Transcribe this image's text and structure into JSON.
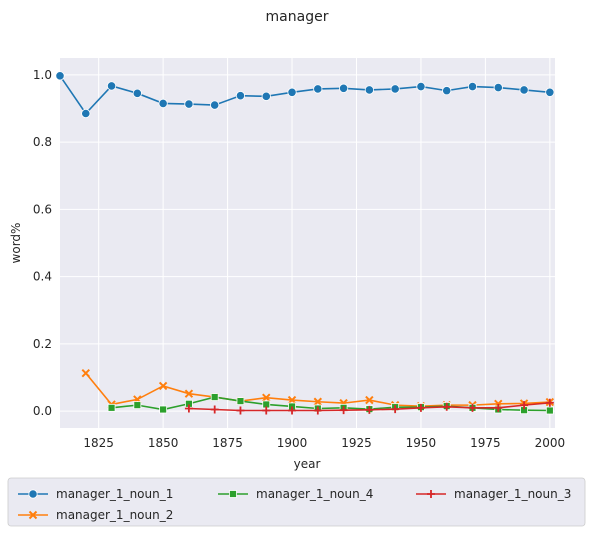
{
  "chart_data": {
    "type": "line",
    "title": "manager",
    "xlabel": "year",
    "ylabel": "word%",
    "xlim": [
      1810,
      2002
    ],
    "ylim": [
      -0.05,
      1.05
    ],
    "x_ticks": [
      1825,
      1850,
      1875,
      1900,
      1925,
      1950,
      1975,
      2000
    ],
    "y_ticks": [
      0.0,
      0.2,
      0.4,
      0.6,
      0.8,
      1.0
    ],
    "x_tick_labels": [
      "1825",
      "1850",
      "1875",
      "1900",
      "1925",
      "1950",
      "1975",
      "2000"
    ],
    "y_tick_labels": [
      "0.0",
      "0.2",
      "0.4",
      "0.6",
      "0.8",
      "1.0"
    ],
    "grid": true,
    "legend_position": "bottom",
    "series": [
      {
        "name": "manager_1_noun_1",
        "color": "#1f77b4",
        "marker": "circle",
        "x": [
          1810,
          1820,
          1830,
          1840,
          1850,
          1860,
          1870,
          1880,
          1890,
          1900,
          1910,
          1920,
          1930,
          1940,
          1950,
          1960,
          1970,
          1980,
          1990,
          2000
        ],
        "y": [
          0.997,
          0.885,
          0.967,
          0.945,
          0.915,
          0.913,
          0.91,
          0.938,
          0.936,
          0.948,
          0.958,
          0.96,
          0.955,
          0.958,
          0.965,
          0.953,
          0.965,
          0.962,
          0.955,
          0.948
        ]
      },
      {
        "name": "manager_1_noun_2",
        "color": "#ff7f0e",
        "marker": "x",
        "x": [
          1820,
          1830,
          1840,
          1850,
          1860,
          1870,
          1880,
          1890,
          1900,
          1910,
          1920,
          1930,
          1940,
          1950,
          1960,
          1970,
          1980,
          1990,
          2000
        ],
        "y": [
          0.113,
          0.02,
          0.035,
          0.075,
          0.052,
          0.042,
          0.03,
          0.04,
          0.033,
          0.028,
          0.024,
          0.033,
          0.018,
          0.015,
          0.018,
          0.018,
          0.022,
          0.023,
          0.027
        ]
      },
      {
        "name": "manager_1_noun_4",
        "color": "#2ca02c",
        "marker": "square",
        "x": [
          1830,
          1840,
          1850,
          1860,
          1870,
          1880,
          1890,
          1900,
          1910,
          1920,
          1930,
          1940,
          1950,
          1960,
          1970,
          1980,
          1990,
          2000
        ],
        "y": [
          0.01,
          0.018,
          0.005,
          0.022,
          0.042,
          0.03,
          0.02,
          0.014,
          0.008,
          0.01,
          0.006,
          0.012,
          0.012,
          0.015,
          0.01,
          0.005,
          0.003,
          0.002
        ]
      },
      {
        "name": "manager_1_noun_3",
        "color": "#d62728",
        "marker": "plus",
        "x": [
          1860,
          1870,
          1880,
          1890,
          1900,
          1910,
          1920,
          1930,
          1940,
          1950,
          1960,
          1970,
          1980,
          1990,
          2000
        ],
        "y": [
          0.008,
          0.005,
          0.002,
          0.002,
          0.002,
          0.002,
          0.003,
          0.004,
          0.006,
          0.01,
          0.013,
          0.01,
          0.01,
          0.018,
          0.025
        ]
      }
    ]
  }
}
